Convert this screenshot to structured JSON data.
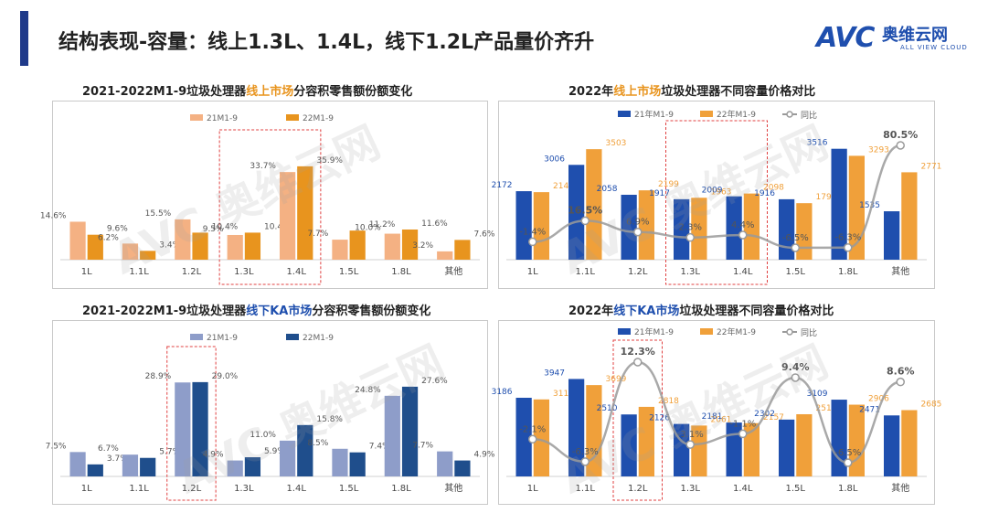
{
  "header": {
    "title": "结构表现-容量：线上1.3L、1.4L，线下1.2L产品量价齐升",
    "brand_avc": "AVC",
    "brand_cn": "奥维云网",
    "brand_en": "ALL VIEW CLOUD"
  },
  "charts": {
    "c1_title_a": "2021-2022M1-9垃圾处理器",
    "c1_title_b": "线上市场",
    "c1_title_c": "分容积零售额份额变化",
    "c2_title_a": "2022年",
    "c2_title_b": "线上市场",
    "c2_title_c": "垃圾处理器不同容量价格对比",
    "c3_title_a": "2021-2022M1-9垃圾处理器",
    "c3_title_b": "线下KA市场",
    "c3_title_c": "分容积零售额份额变化",
    "c4_title_a": "2022年",
    "c4_title_b": "线下KA市场",
    "c4_title_c": "垃圾处理器不同容量价格对比"
  },
  "colors": {
    "online_21": "#f4b183",
    "online_22": "#e8941e",
    "offline_21": "#8e9dc9",
    "offline_22": "#1f4e8c",
    "price_21": "#1f4fae",
    "price_22": "#f0a03a",
    "yoy_line": "#9a9a9a",
    "highlight_box": "#e04040"
  },
  "chart_data": [
    {
      "type": "bar",
      "title": "2021-2022M1-9垃圾处理器线上市场分容积零售额份额变化",
      "categories": [
        "1L",
        "1.1L",
        "1.2L",
        "1.3L",
        "1.4L",
        "1.5L",
        "1.8L",
        "其他"
      ],
      "series": [
        {
          "name": "21M1-9",
          "values": [
            14.6,
            6.2,
            15.5,
            9.5,
            33.7,
            7.7,
            10.0,
            3.2
          ],
          "labels": [
            "14.6%",
            "6.2%",
            "15.5%",
            "9.5%",
            "33.7%",
            "7.7%",
            "10.0%",
            "3.2%"
          ]
        },
        {
          "name": "22M1-9",
          "values": [
            9.6,
            3.4,
            10.4,
            10.4,
            35.9,
            11.2,
            11.6,
            7.6
          ],
          "labels": [
            "9.6%",
            "3.4%",
            "10.4%",
            "10.4%",
            "35.9%",
            "11.2%",
            "11.6%",
            "7.6%"
          ]
        }
      ],
      "ylim": [
        0,
        45
      ],
      "highlight": "1.3L-1.4L"
    },
    {
      "type": "bar",
      "title": "2022年线上市场垃圾处理器不同容量价格对比",
      "categories": [
        "1L",
        "1.1L",
        "1.2L",
        "1.3L",
        "1.4L",
        "1.5L",
        "1.8L",
        "其他"
      ],
      "series": [
        {
          "name": "21年M1-9",
          "values": [
            2172,
            3006,
            2058,
            1917,
            2009,
            1916,
            3516,
            1535
          ],
          "labels": [
            "2172",
            "3006",
            "2058",
            "1917",
            "2009",
            "1916",
            "3516",
            "1535"
          ]
        },
        {
          "name": "22年M1-9",
          "values": [
            2141,
            3503,
            2199,
            1963,
            2098,
            1792,
            3293,
            2771
          ],
          "labels": [
            "2141",
            "3503",
            "2199",
            "1963",
            "2098",
            "1792",
            "3293",
            "2771"
          ]
        }
      ],
      "line": {
        "name": "同比",
        "values": [
          -1.4,
          16.5,
          6.9,
          2.3,
          4.4,
          -6.5,
          -6.3,
          80.5
        ],
        "labels": [
          "-1.4%",
          "16.5%",
          "6.9%",
          "2.3%",
          "4.4%",
          "-6.5%",
          "-6.3%",
          "80.5%"
        ]
      },
      "ylim": [
        0,
        4000
      ],
      "highlight": "1.3L-1.4L"
    },
    {
      "type": "bar",
      "title": "2021-2022M1-9垃圾处理器线下KA市场分容积零售额份额变化",
      "categories": [
        "1L",
        "1.1L",
        "1.2L",
        "1.3L",
        "1.4L",
        "1.5L",
        "1.8L",
        "其他"
      ],
      "series": [
        {
          "name": "21M1-9",
          "values": [
            7.5,
            6.7,
            28.9,
            4.9,
            11.0,
            8.5,
            24.8,
            7.7
          ],
          "labels": [
            "7.5%",
            "6.7%",
            "28.9%",
            "4.9%",
            "11.0%",
            "8.5%",
            "24.8%",
            "7.7%"
          ]
        },
        {
          "name": "22M1-9",
          "values": [
            3.7,
            5.7,
            29.0,
            5.9,
            15.8,
            7.4,
            27.6,
            4.9
          ],
          "labels": [
            "3.7%",
            "5.7%",
            "29.0%",
            "5.9%",
            "15.8%",
            "7.4%",
            "27.6%",
            "4.9%"
          ]
        }
      ],
      "ylim": [
        0,
        36
      ],
      "highlight": "1.2L"
    },
    {
      "type": "bar",
      "title": "2022年线下KA市场垃圾处理器不同容量价格对比",
      "categories": [
        "1L",
        "1.1L",
        "1.2L",
        "1.3L",
        "1.4L",
        "1.5L",
        "1.8L",
        "其他"
      ],
      "series": [
        {
          "name": "21年M1-9",
          "values": [
            3186,
            3947,
            2510,
            2126,
            2181,
            2302,
            3109,
            2471
          ],
          "labels": [
            "3186",
            "3947",
            "2510",
            "2126",
            "2181",
            "2302",
            "3109",
            "2471"
          ]
        },
        {
          "name": "22年M1-9",
          "values": [
            3119,
            3699,
            2818,
            2061,
            2157,
            2519,
            2906,
            2685
          ],
          "labels": [
            "3119",
            "3699",
            "2818",
            "2061",
            "2157",
            "2519",
            "2906",
            "2685"
          ]
        }
      ],
      "line": {
        "name": "同比",
        "values": [
          -2.1,
          -6.3,
          12.3,
          -3.1,
          -1.1,
          9.4,
          -6.5,
          8.6
        ],
        "labels": [
          "-2.1%",
          "-6.3%",
          "12.3%",
          "-3.1%",
          "-1.1%",
          "9.4%",
          "-6.5%",
          "8.6%"
        ]
      },
      "ylim": [
        0,
        5000
      ],
      "highlight": "1.2L"
    }
  ]
}
